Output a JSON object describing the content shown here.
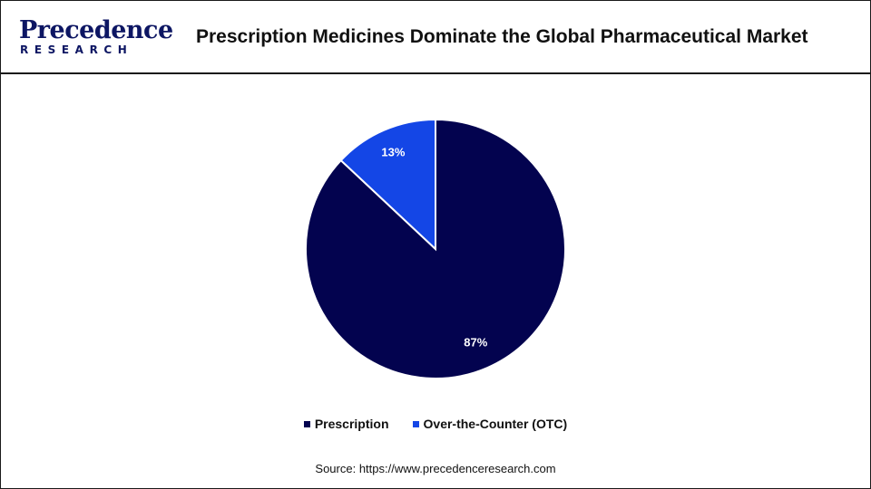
{
  "logo": {
    "name": "Precedence",
    "tagline": "RESEARCH"
  },
  "title": "Prescription Medicines Dominate the Global Pharmaceutical Market",
  "source": "Source: https://www.precedenceresearch.com",
  "colors": {
    "prescription": "#03034f",
    "otc": "#1446e6",
    "brand": "#0d1663"
  },
  "chart_data": {
    "type": "pie",
    "title": "Prescription Medicines Dominate the Global Pharmaceutical Market",
    "slices": [
      {
        "label": "Prescription",
        "value": 87,
        "display": "87%",
        "color": "#03034f"
      },
      {
        "label": "Over-the-Counter (OTC)",
        "value": 13,
        "display": "13%",
        "color": "#1446e6"
      }
    ],
    "legend_position": "bottom"
  }
}
